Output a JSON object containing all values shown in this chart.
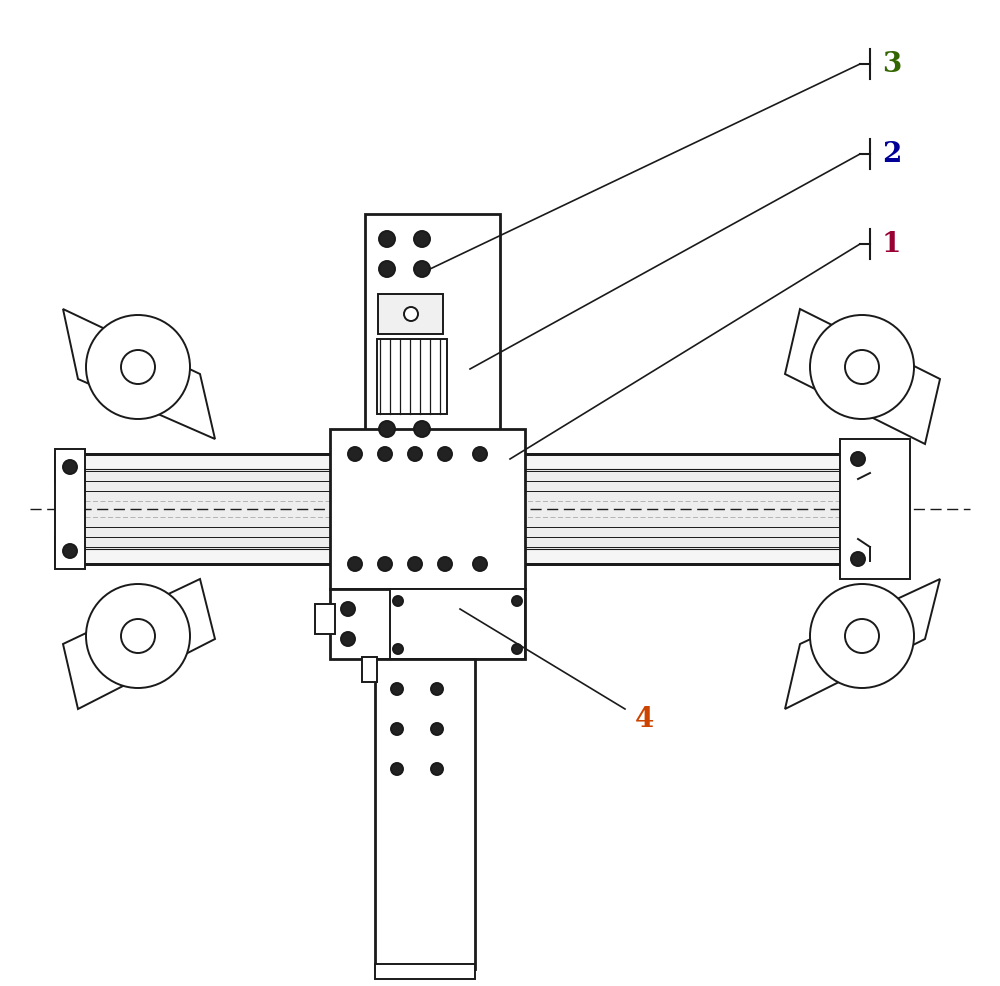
{
  "bg_color": "#ffffff",
  "lc": "#1a1a1a",
  "label_color_1": "#990033",
  "label_color_2": "#000099",
  "label_color_3": "#336600",
  "label_color_4": "#cc4400",
  "lw_main": 1.4,
  "lw_thick": 2.0,
  "lw_thin": 0.8
}
